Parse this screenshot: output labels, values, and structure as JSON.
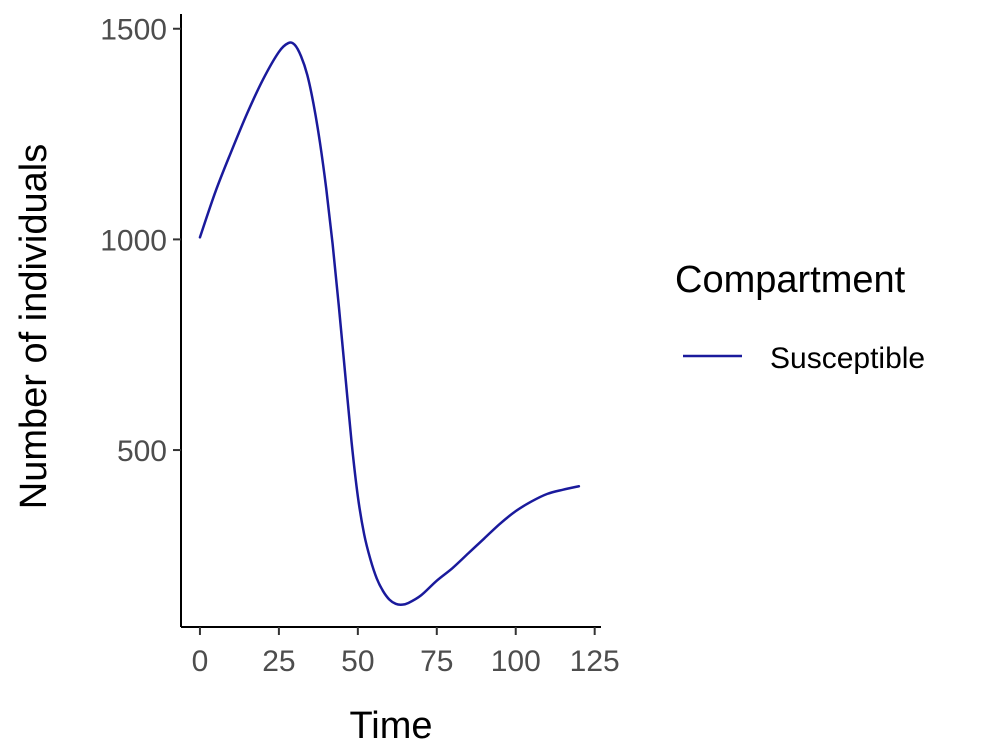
{
  "chart_data": {
    "type": "line",
    "xlabel": "Time",
    "ylabel": "Number of individuals",
    "xlim": [
      -6,
      127
    ],
    "ylim": [
      80,
      1535
    ],
    "x_ticks": [
      0,
      25,
      50,
      75,
      100,
      125
    ],
    "y_ticks": [
      500,
      1000,
      1500
    ],
    "grid": false,
    "legend": {
      "title": "Compartment",
      "position": "right"
    },
    "series": [
      {
        "name": "Susceptible",
        "color": "#1a1a9c",
        "x": [
          0,
          5,
          10,
          15,
          20,
          25,
          28,
          30,
          32,
          34,
          36,
          38,
          40,
          42,
          44,
          46,
          48,
          50,
          52,
          54,
          56,
          58,
          60,
          62,
          64,
          66,
          70,
          75,
          80,
          85,
          90,
          95,
          100,
          105,
          110,
          115,
          120
        ],
        "y": [
          1005,
          1115,
          1210,
          1300,
          1380,
          1445,
          1466,
          1462,
          1435,
          1390,
          1320,
          1230,
          1120,
          990,
          840,
          680,
          520,
          390,
          300,
          240,
          195,
          165,
          145,
          135,
          133,
          137,
          155,
          190,
          220,
          255,
          290,
          325,
          355,
          378,
          396,
          406,
          414
        ]
      }
    ]
  }
}
